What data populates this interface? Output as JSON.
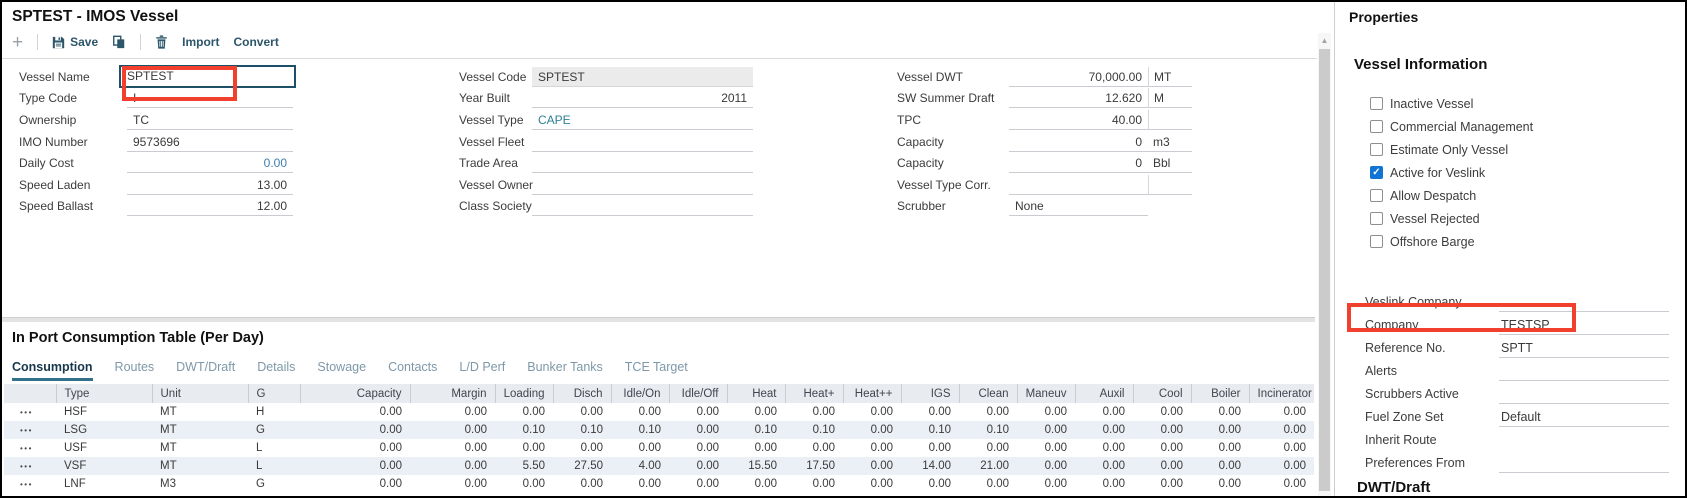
{
  "window": {
    "title": "SPTEST - IMOS Vessel"
  },
  "toolbar": {
    "add": "+",
    "save": "Save",
    "import": "Import",
    "convert": "Convert"
  },
  "form": {
    "left": [
      {
        "label": "Vessel Name",
        "value": "SPTEST",
        "cls": "input"
      },
      {
        "label": "Type Code",
        "value": "I",
        "cls": ""
      },
      {
        "label": "Ownership",
        "value": "TC",
        "cls": ""
      },
      {
        "label": "IMO Number",
        "value": "9573696",
        "cls": ""
      },
      {
        "label": "Daily Cost",
        "value": "0.00",
        "cls": "num blue"
      },
      {
        "label": "Speed Laden",
        "value": "13.00",
        "cls": "num"
      },
      {
        "label": "Speed Ballast",
        "value": "12.00",
        "cls": "num"
      }
    ],
    "middle": [
      {
        "label": "Vessel Code",
        "value": "SPTEST",
        "cls": "readonly"
      },
      {
        "label": "Year Built",
        "value": "2011",
        "cls": "num"
      },
      {
        "label": "Vessel Type",
        "value": "CAPE",
        "cls": "link"
      },
      {
        "label": "Vessel Fleet",
        "value": "",
        "cls": ""
      },
      {
        "label": "Trade Area",
        "value": "",
        "cls": ""
      },
      {
        "label": "Vessel Owner",
        "value": "",
        "cls": ""
      },
      {
        "label": "Class Society",
        "value": "",
        "cls": ""
      }
    ],
    "right": [
      {
        "label": "Vessel DWT",
        "value": "70,000.00",
        "cls": "num",
        "unit": "MT",
        "divider": true
      },
      {
        "label": "SW Summer Draft",
        "value": "12.620",
        "cls": "num",
        "unit": "M",
        "divider": true
      },
      {
        "label": "TPC",
        "value": "40.00",
        "cls": "num",
        "unit": "",
        "divider": true
      },
      {
        "label": "Capacity",
        "value": "0",
        "cls": "num",
        "unit": "m3",
        "divider": false
      },
      {
        "label": "Capacity",
        "value": "0",
        "cls": "num",
        "unit": "Bbl",
        "divider": false
      },
      {
        "label": "Vessel Type Corr.",
        "value": "",
        "cls": "num",
        "unit": "",
        "divider": true
      },
      {
        "label": "Scrubber",
        "value": "None",
        "cls": ""
      }
    ]
  },
  "section": {
    "title": "In Port Consumption Table (Per Day)",
    "tabs": [
      "Consumption",
      "Routes",
      "DWT/Draft",
      "Details",
      "Stowage",
      "Contacts",
      "L/D Perf",
      "Bunker Tanks",
      "TCE Target"
    ],
    "active_tab": "Consumption"
  },
  "table": {
    "columns": [
      "",
      "Type",
      "Unit",
      "G",
      "Capacity",
      "Margin",
      "Loading",
      "Disch",
      "Idle/On",
      "Idle/Off",
      "Heat",
      "Heat+",
      "Heat++",
      "IGS",
      "Clean",
      "Maneuv",
      "Auxil",
      "Cool",
      "Boiler",
      "Incinerator"
    ],
    "row_handle_glyph": "•••",
    "rows": [
      {
        "type": "HSF",
        "unit": "MT",
        "g": "H",
        "values": [
          "0.00",
          "0.00",
          "0.00",
          "0.00",
          "0.00",
          "0.00",
          "0.00",
          "0.00",
          "0.00",
          "0.00",
          "0.00",
          "0.00",
          "0.00",
          "0.00",
          "0.00",
          "0.00"
        ]
      },
      {
        "type": "LSG",
        "unit": "MT",
        "g": "G",
        "values": [
          "0.00",
          "0.00",
          "0.10",
          "0.10",
          "0.10",
          "0.00",
          "0.10",
          "0.10",
          "0.00",
          "0.10",
          "0.10",
          "0.00",
          "0.00",
          "0.00",
          "0.00",
          "0.00"
        ]
      },
      {
        "type": "USF",
        "unit": "MT",
        "g": "L",
        "values": [
          "0.00",
          "0.00",
          "0.00",
          "0.00",
          "0.00",
          "0.00",
          "0.00",
          "0.00",
          "0.00",
          "0.00",
          "0.00",
          "0.00",
          "0.00",
          "0.00",
          "0.00",
          "0.00"
        ]
      },
      {
        "type": "VSF",
        "unit": "MT",
        "g": "L",
        "values": [
          "0.00",
          "0.00",
          "5.50",
          "27.50",
          "4.00",
          "0.00",
          "15.50",
          "17.50",
          "0.00",
          "14.00",
          "21.00",
          "0.00",
          "0.00",
          "0.00",
          "0.00",
          "0.00"
        ]
      },
      {
        "type": "LNF",
        "unit": "M3",
        "g": "G",
        "values": [
          "0.00",
          "0.00",
          "0.00",
          "0.00",
          "0.00",
          "0.00",
          "0.00",
          "0.00",
          "0.00",
          "0.00",
          "0.00",
          "0.00",
          "0.00",
          "0.00",
          "0.00",
          "0.00"
        ]
      }
    ]
  },
  "properties": {
    "title": "Properties",
    "vessel_information": {
      "title": "Vessel Information",
      "checkboxes": [
        {
          "label": "Inactive Vessel",
          "checked": false
        },
        {
          "label": "Commercial Management",
          "checked": false
        },
        {
          "label": "Estimate Only Vessel",
          "checked": false
        },
        {
          "label": "Active for Veslink",
          "checked": true
        },
        {
          "label": "Allow Despatch",
          "checked": false
        },
        {
          "label": "Vessel Rejected",
          "checked": false
        },
        {
          "label": "Offshore Barge",
          "checked": false
        }
      ]
    },
    "veslink": {
      "rows": [
        {
          "label": "Veslink Company",
          "value": "",
          "underline": true
        },
        {
          "label": "Company",
          "value": "TESTSP",
          "underline": true,
          "highlight": true
        },
        {
          "label": "Reference No.",
          "value": "SPTT",
          "underline": true
        },
        {
          "label": "Alerts",
          "value": "",
          "underline": true
        },
        {
          "label": "Scrubbers Active",
          "value": "",
          "underline": true
        },
        {
          "label": "Fuel Zone Set",
          "value": "Default",
          "underline": true
        },
        {
          "label": "Inherit Route",
          "value": "",
          "underline": false
        },
        {
          "label": "Preferences From",
          "value": "",
          "underline": true
        }
      ]
    },
    "next_section_title": "DWT/Draft"
  },
  "colors": {
    "toolbar_text": "#2d566b",
    "tab_active_underline": "#326f88",
    "link_teal": "#2e7f99",
    "value_blue": "#3f7fa9",
    "checkbox_checked": "#1173d3",
    "highlight_red": "#f2402e"
  }
}
